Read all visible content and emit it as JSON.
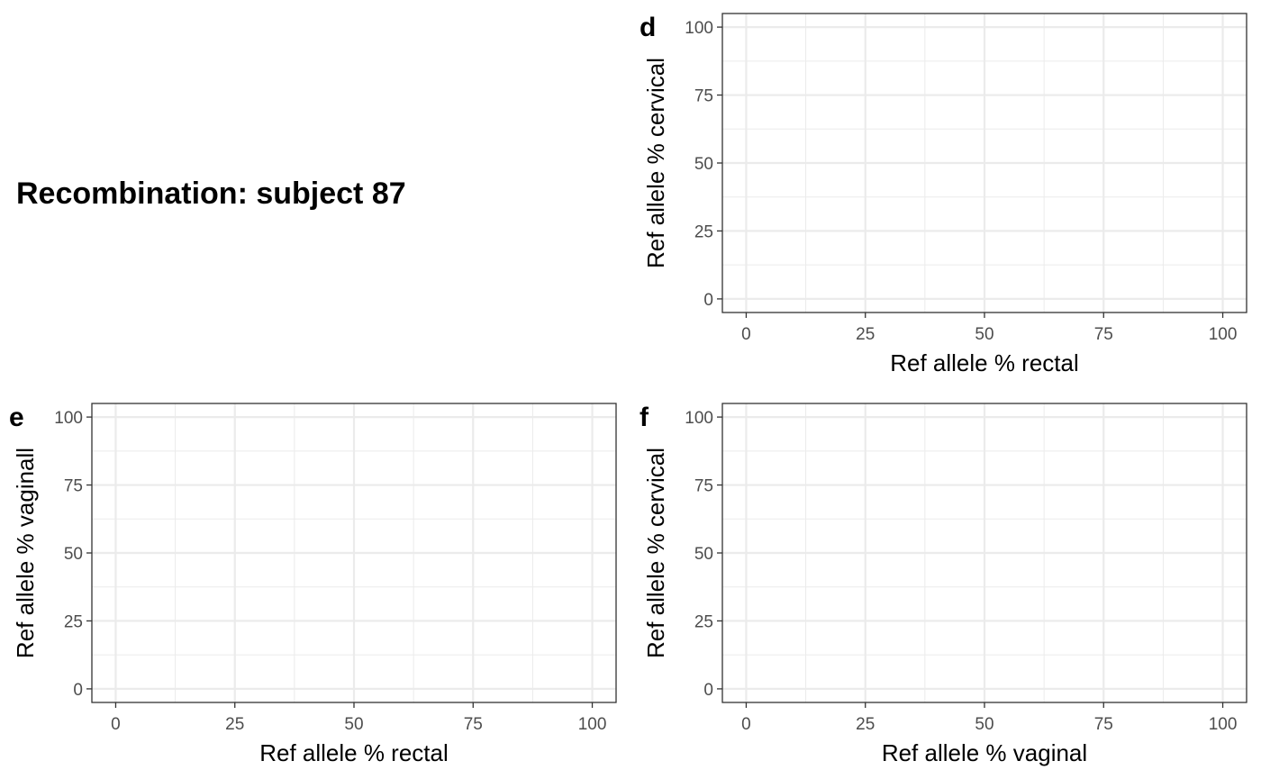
{
  "figure": {
    "title": "Recombination: subject 87"
  },
  "chart_data": [
    {
      "type": "scatter",
      "panel": "d",
      "xlabel": "Ref allele % rectal",
      "ylabel": "Ref allele % cervical",
      "xlim": [
        -5,
        105
      ],
      "ylim": [
        -5,
        105
      ],
      "xticks": [
        "0",
        "25",
        "50",
        "75",
        "100"
      ],
      "yticks": [
        "0",
        "25",
        "50",
        "75",
        "100"
      ],
      "x": [],
      "y": [],
      "grid": true
    },
    {
      "type": "scatter",
      "panel": "e",
      "xlabel": "Ref allele % rectal",
      "ylabel": "Ref allele % vaginall",
      "xlim": [
        -5,
        105
      ],
      "ylim": [
        -5,
        105
      ],
      "xticks": [
        "0",
        "25",
        "50",
        "75",
        "100"
      ],
      "yticks": [
        "0",
        "25",
        "50",
        "75",
        "100"
      ],
      "x": [],
      "y": [],
      "grid": true
    },
    {
      "type": "scatter",
      "panel": "f",
      "xlabel": "Ref allele % vaginal",
      "ylabel": "Ref allele % cervical",
      "xlim": [
        -5,
        105
      ],
      "ylim": [
        -5,
        105
      ],
      "xticks": [
        "0",
        "25",
        "50",
        "75",
        "100"
      ],
      "yticks": [
        "0",
        "25",
        "50",
        "75",
        "100"
      ],
      "x": [],
      "y": [],
      "grid": true
    }
  ]
}
